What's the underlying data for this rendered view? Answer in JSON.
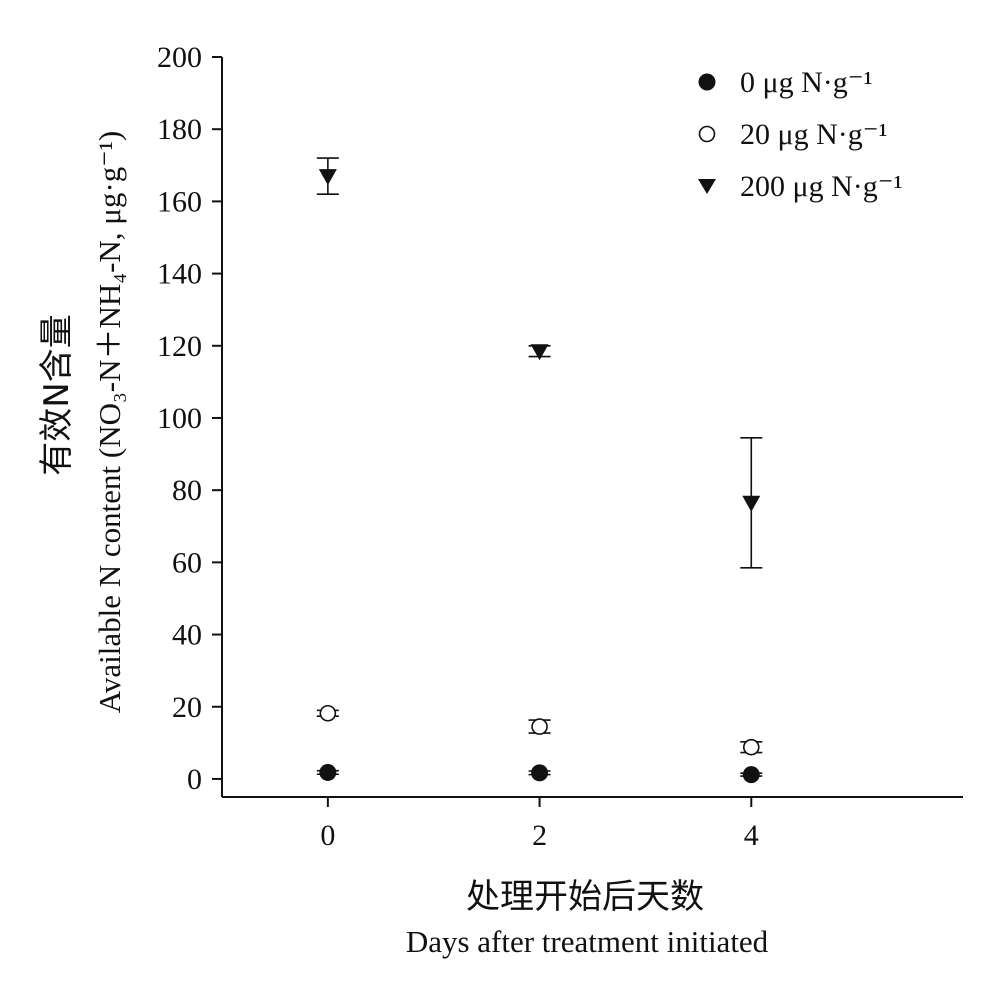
{
  "chart_data": {
    "type": "scatter",
    "x_ticks": [
      "0",
      "2",
      "4"
    ],
    "xlim": [
      -1,
      6
    ],
    "y_ticks": [
      "0",
      "20",
      "40",
      "60",
      "80",
      "100",
      "120",
      "140",
      "160",
      "180",
      "200"
    ],
    "ylim": [
      -5,
      200
    ],
    "xlabel_cn": "处理开始后天数",
    "xlabel_en": "Days after treatment initiated",
    "ylabel_cn": "有效N含量",
    "ylabel_en": "Available N content (NO₃-N＋NH₄-N, μg·g⁻¹)",
    "legend_position": "top-right",
    "grid": false,
    "series": [
      {
        "name": "0  μg N·g⁻¹",
        "marker": "filled-circle",
        "x": [
          0,
          2,
          4
        ],
        "y": [
          1.8,
          1.7,
          1.2
        ],
        "err": [
          0.5,
          0.5,
          0.4
        ]
      },
      {
        "name": "20  μg N·g⁻¹",
        "marker": "open-circle",
        "x": [
          0,
          2,
          4
        ],
        "y": [
          18.2,
          14.5,
          8.8
        ],
        "err": [
          0.8,
          1.8,
          1.5
        ]
      },
      {
        "name": "200  μg N·g⁻¹",
        "marker": "filled-triangle-down",
        "x": [
          0,
          2,
          4
        ],
        "y": [
          167,
          118.5,
          76.5
        ],
        "err": [
          5,
          1.5,
          18
        ]
      }
    ]
  }
}
